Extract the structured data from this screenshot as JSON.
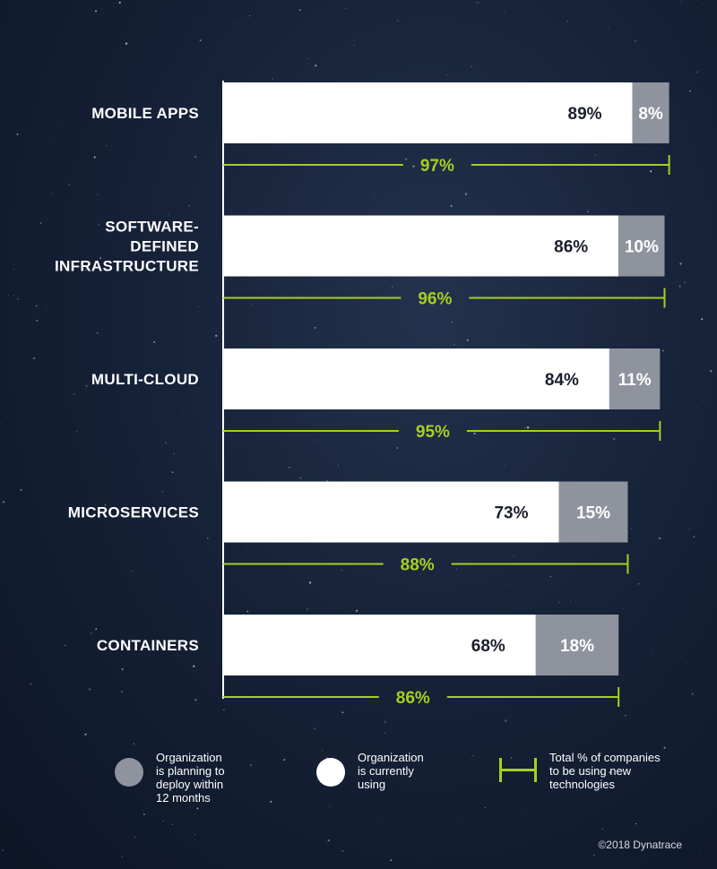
{
  "chart_data": {
    "type": "bar",
    "orientation": "horizontal",
    "stacked": true,
    "categories": [
      "MOBILE APPS",
      "SOFTWARE-DEFINED INFRASTRUCTURE",
      "MULTI-CLOUD",
      "MICROSERVICES",
      "CONTAINERS"
    ],
    "category_label_lines": [
      [
        "MOBILE APPS"
      ],
      [
        "SOFTWARE-",
        "DEFINED",
        "INFRASTRUCTURE"
      ],
      [
        "MULTI-CLOUD"
      ],
      [
        "MICROSERVICES"
      ],
      [
        "CONTAINERS"
      ]
    ],
    "series": [
      {
        "name": "Organization is currently using",
        "values": [
          89,
          86,
          84,
          73,
          68
        ],
        "labels": [
          "89%",
          "86%",
          "84%",
          "73%",
          "68%"
        ],
        "color": "#ffffff"
      },
      {
        "name": "Organization is planning to deploy within 12 months",
        "values": [
          8,
          10,
          11,
          15,
          18
        ],
        "labels": [
          "8%",
          "10%",
          "11%",
          "15%",
          "18%"
        ],
        "color": "#8e939e"
      }
    ],
    "totals": {
      "name": "Total % of companies to be using new technologies",
      "values": [
        97,
        96,
        95,
        88,
        86
      ],
      "labels": [
        "97%",
        "96%",
        "95%",
        "88%",
        "86%"
      ],
      "color": "#a6cf1f"
    },
    "xlim": [
      0,
      100
    ],
    "grid": false,
    "legend_position": "bottom"
  },
  "legend": {
    "planning": {
      "lines": [
        "Organization",
        "is planning to",
        "deploy within",
        "12 months"
      ],
      "icon": "gray-circle",
      "color": "#8e939e"
    },
    "using": {
      "lines": [
        "Organization",
        "is currently",
        "using"
      ],
      "icon": "white-circle",
      "color": "#ffffff"
    },
    "total": {
      "lines": [
        "Total % of companies",
        "to be using new",
        "technologies"
      ],
      "icon": "green-bracket",
      "color": "#a6cf1f"
    }
  },
  "copyright": "©2018 Dynatrace"
}
